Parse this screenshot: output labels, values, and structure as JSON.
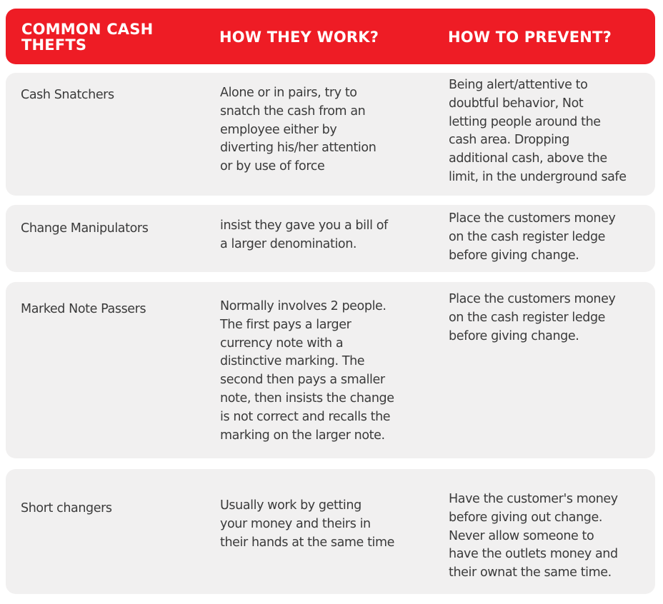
{
  "header": {
    "col1": "COMMON CASH\nTHEFTS",
    "col2": "HOW THEY WORK?",
    "col3": "HOW TO PREVENT?"
  },
  "rows": [
    {
      "theft": "Cash Snatchers",
      "how": "Alone or in pairs, try to\nsnatch the cash from an\nemployee either by\ndiverting his/her attention\nor by use of force",
      "prevent": "Being alert/attentive to\ndoubtful behavior, Not\nletting people around the\ncash area. Dropping\nadditional cash, above the\nlimit, in the underground safe"
    },
    {
      "theft": "Change Manipulators",
      "how": "insist they gave you a bill of\na larger denomination.",
      "prevent": "Place the customers money\non the cash register ledge\nbefore giving change."
    },
    {
      "theft": "Marked Note Passers",
      "how": "Normally involves 2 people.\nThe first pays a larger\ncurrency note with a\ndistinctive marking. The\nsecond then pays a smaller\nnote, then insists the change\nis not correct and recalls the\nmarking on the larger note.",
      "prevent": "Place the customers money\non the cash register ledge\nbefore giving change."
    },
    {
      "theft": "Short changers",
      "how": "Usually work by getting\nyour money and theirs in\ntheir hands at the same time",
      "prevent": "Have the customer's money\nbefore giving out change.\nNever allow someone to\nhave the outlets money and\ntheir ownat the same time."
    }
  ],
  "colors": {
    "header_bg": "#ee1c25",
    "row_bg": "#f1f0f0",
    "text": "#3a3a3a"
  }
}
